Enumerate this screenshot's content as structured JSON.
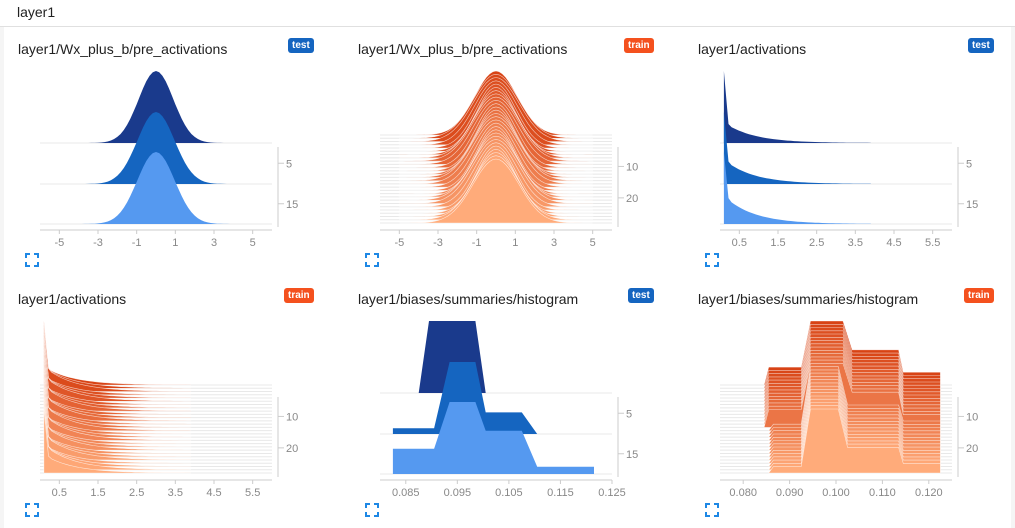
{
  "header": {
    "title": "layer1"
  },
  "colors": {
    "test": [
      "#1a3a8c",
      "#1565c0",
      "#5599f0"
    ],
    "train_dark": "#d84315",
    "train_light": "#ffab7a",
    "badge_test": "#1565c0",
    "badge_train": "#f4511e"
  },
  "chart_data": [
    {
      "type": "area",
      "title": "layer1/Wx_plus_b/pre_activations",
      "run": "test",
      "distribution": "gaussian",
      "params": {
        "mu": 0,
        "sigma": 0.9
      },
      "n_slices": 3,
      "xlim": [
        -6,
        6
      ],
      "xticks": [
        "-5",
        "-3",
        "-1",
        "1",
        "3",
        "5"
      ],
      "xtick_values": [
        -5,
        -3,
        -1,
        1,
        3,
        5
      ],
      "yticks": [
        "5",
        "15"
      ],
      "ytick_values": [
        5,
        15
      ],
      "step_range": [
        0,
        20
      ]
    },
    {
      "type": "area",
      "title": "layer1/Wx_plus_b/pre_activations",
      "run": "train",
      "distribution": "gaussian",
      "params": {
        "mu": 0,
        "sigma": 1.1
      },
      "n_slices": 28,
      "xlim": [
        -6,
        6
      ],
      "xticks": [
        "-5",
        "-3",
        "-1",
        "1",
        "3",
        "5"
      ],
      "xtick_values": [
        -5,
        -3,
        -1,
        1,
        3,
        5
      ],
      "yticks": [
        "10",
        "20"
      ],
      "ytick_values": [
        10,
        20
      ],
      "step_range": [
        0,
        28
      ]
    },
    {
      "type": "area",
      "title": "layer1/activations",
      "run": "test",
      "distribution": "spike",
      "n_slices": 3,
      "xlim": [
        0,
        6
      ],
      "xticks": [
        "0.5",
        "1.5",
        "2.5",
        "3.5",
        "4.5",
        "5.5"
      ],
      "xtick_values": [
        0.5,
        1.5,
        2.5,
        3.5,
        4.5,
        5.5
      ],
      "yticks": [
        "5",
        "15"
      ],
      "ytick_values": [
        5,
        15
      ],
      "step_range": [
        0,
        20
      ]
    },
    {
      "type": "area",
      "title": "layer1/activations",
      "run": "train",
      "distribution": "spike",
      "n_slices": 28,
      "xlim": [
        0,
        6
      ],
      "xticks": [
        "0.5",
        "1.5",
        "2.5",
        "3.5",
        "4.5",
        "5.5"
      ],
      "xtick_values": [
        0.5,
        1.5,
        2.5,
        3.5,
        4.5,
        5.5
      ],
      "yticks": [
        "10",
        "20"
      ],
      "ytick_values": [
        10,
        20
      ],
      "step_range": [
        0,
        28
      ]
    },
    {
      "type": "area",
      "title": "layer1/biases/summaries/histogram",
      "run": "test",
      "distribution": "bins",
      "n_slices": 3,
      "xlim": [
        0.08,
        0.125
      ],
      "xticks": [
        "0.085",
        "0.095",
        "0.105",
        "0.115",
        "0.125"
      ],
      "xtick_values": [
        0.085,
        0.095,
        0.105,
        0.115,
        0.125
      ],
      "yticks": [
        "5",
        "15"
      ],
      "ytick_values": [
        5,
        15
      ],
      "step_range": [
        0,
        20
      ],
      "profiles": [
        [
          [
            0.0875,
            0
          ],
          [
            0.0895,
            1
          ],
          [
            0.0985,
            1
          ],
          [
            0.1005,
            0
          ]
        ],
        [
          [
            0.0825,
            0.08
          ],
          [
            0.0905,
            0.08
          ],
          [
            0.0935,
            1
          ],
          [
            0.0985,
            1
          ],
          [
            0.1005,
            0.3
          ],
          [
            0.1075,
            0.3
          ],
          [
            0.1105,
            0
          ]
        ],
        [
          [
            0.0825,
            0.35
          ],
          [
            0.0905,
            0.35
          ],
          [
            0.0935,
            1
          ],
          [
            0.0985,
            1
          ],
          [
            0.1005,
            0.6
          ],
          [
            0.1075,
            0.6
          ],
          [
            0.1105,
            0.1
          ],
          [
            0.1215,
            0.1
          ]
        ]
      ]
    },
    {
      "type": "area",
      "title": "layer1/biases/summaries/histogram",
      "run": "train",
      "distribution": "bins",
      "n_slices": 28,
      "xlim": [
        0.075,
        0.125
      ],
      "xticks": [
        "0.080",
        "0.090",
        "0.100",
        "0.110",
        "0.120"
      ],
      "xtick_values": [
        0.08,
        0.09,
        0.1,
        0.11,
        0.12
      ],
      "yticks": [
        "10",
        "20"
      ],
      "ytick_values": [
        10,
        20
      ],
      "step_range": [
        0,
        28
      ],
      "profiles": [
        [
          [
            0.0845,
            0
          ],
          [
            0.0855,
            0.28
          ],
          [
            0.0925,
            0.28
          ],
          [
            0.0945,
            1
          ],
          [
            0.1015,
            1
          ],
          [
            0.1035,
            0.55
          ],
          [
            0.1135,
            0.55
          ],
          [
            0.1145,
            0.2
          ],
          [
            0.1225,
            0.2
          ]
        ],
        [
          [
            0.0855,
            0
          ],
          [
            0.0865,
            0.1
          ],
          [
            0.0925,
            0.1
          ],
          [
            0.0945,
            1
          ],
          [
            0.1005,
            1
          ],
          [
            0.1025,
            0.4
          ],
          [
            0.1135,
            0.4
          ],
          [
            0.1145,
            0.15
          ],
          [
            0.1225,
            0.15
          ]
        ]
      ]
    }
  ]
}
